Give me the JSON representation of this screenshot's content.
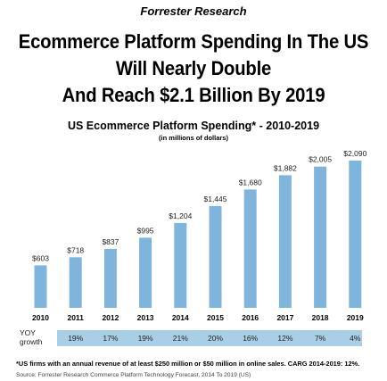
{
  "header": {
    "source": "Forrester Research",
    "headline_lines": [
      "Ecommerce Platform Spending In The US",
      "Will Nearly Double",
      "And Reach $2.1 Billion By 2019"
    ]
  },
  "chart_data": {
    "type": "bar",
    "title": "US Ecommerce Platform Spending* - 2010-2019",
    "subtitle": "(in millions of dollars)",
    "categories": [
      "2010",
      "2011",
      "2012",
      "2013",
      "2014",
      "2015",
      "2016",
      "2017",
      "2018",
      "2019"
    ],
    "values": [
      603,
      718,
      837,
      995,
      1204,
      1445,
      1680,
      1882,
      2005,
      2090
    ],
    "value_labels": [
      "$603",
      "$718",
      "$837",
      "$995",
      "$1,204",
      "$1,445",
      "$1,680",
      "$1,882",
      "$2,005",
      "$2,090"
    ],
    "yoy_label": "YOY growth",
    "yoy_growth": [
      "19%",
      "17%",
      "19%",
      "21%",
      "20%",
      "16%",
      "12%",
      "7%",
      "4%"
    ],
    "bar_color": "#7fb5dc",
    "yoy_band_color": "#a9cfe6",
    "ylim": [
      0,
      2090
    ],
    "grid": false,
    "legend": "none"
  },
  "footnote": "*US firms with an annual revenue of at least $250 million or $50 million in online sales. CARG 2014-2019: 12%.",
  "source_bottom": "Source: Forrester Research Commerce Platform Technology Forecast, 2014 To 2019 (US)"
}
